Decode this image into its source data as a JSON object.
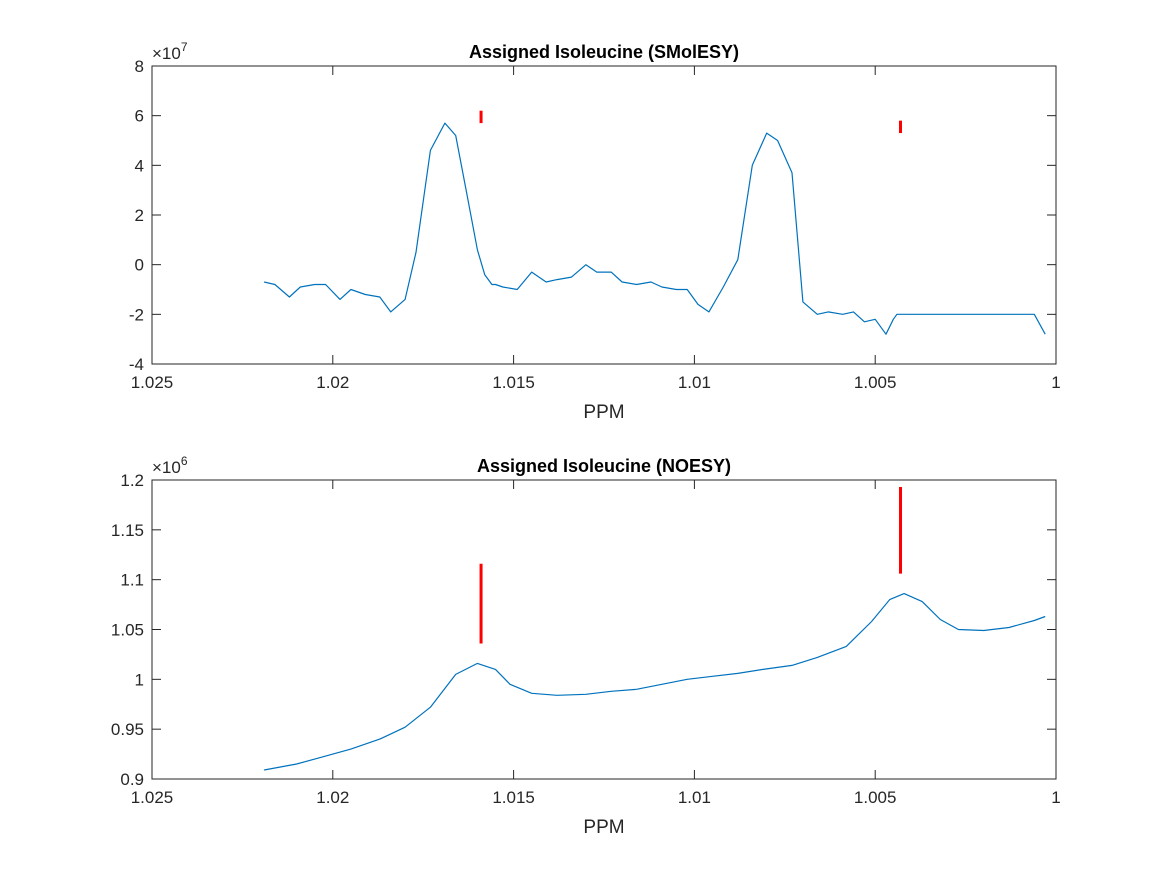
{
  "chart_data": [
    {
      "type": "line",
      "title": "Assigned Isoleucine (SMolESY)",
      "xlabel": "PPM",
      "ylabel": "",
      "x_reversed": true,
      "xlim": [
        1.0,
        1.025
      ],
      "ylim": [
        -4,
        8
      ],
      "xticks": [
        1.025,
        1.02,
        1.015,
        1.01,
        1.005,
        1
      ],
      "xtick_labels": [
        "1.025",
        "1.02",
        "1.015",
        "1.01",
        "1.005",
        "1"
      ],
      "yticks": [
        -4,
        -2,
        0,
        2,
        4,
        6,
        8
      ],
      "ytick_labels": [
        "-4",
        "-2",
        "0",
        "2",
        "4",
        "6",
        "8"
      ],
      "y_exponent_base": "×10",
      "y_exponent": "7",
      "line_color": "#0072BD",
      "marker_color": "#FF0000",
      "series": [
        {
          "x": [
            1.0219,
            1.0216,
            1.0212,
            1.0209,
            1.0205,
            1.0202,
            1.0198,
            1.0195,
            1.0191,
            1.0187,
            1.0184,
            1.018,
            1.0177,
            1.0173,
            1.0169,
            1.0166,
            1.0163,
            1.016,
            1.0158,
            1.0156,
            1.0155,
            1.0153,
            1.0149,
            1.0145,
            1.0141,
            1.0138,
            1.0134,
            1.013,
            1.0127,
            1.0123,
            1.012,
            1.0116,
            1.0112,
            1.0109,
            1.0105,
            1.0102,
            1.0099,
            1.0096,
            1.0092,
            1.0088,
            1.0084,
            1.008,
            1.0077,
            1.0073,
            1.007,
            1.0066,
            1.0063,
            1.0059,
            1.0056,
            1.0053,
            1.005,
            1.0047,
            1.0045,
            1.0044,
            1.0042,
            1.0038,
            1.0035,
            1.0032,
            1.0029,
            1.0025,
            1.0021,
            1.0017,
            1.0013,
            1.001,
            1.0006,
            1.0003
          ],
          "y": [
            -0.7,
            -0.8,
            -1.3,
            -0.9,
            -0.8,
            -0.8,
            -1.4,
            -1.0,
            -1.2,
            -1.3,
            -1.9,
            -1.4,
            0.5,
            4.6,
            5.7,
            5.2,
            2.9,
            0.6,
            -0.4,
            -0.8,
            -0.8,
            -0.9,
            -1.0,
            -0.3,
            -0.7,
            -0.6,
            -0.5,
            0.0,
            -0.3,
            -0.3,
            -0.7,
            -0.8,
            -0.7,
            -0.9,
            -1.0,
            -1.0,
            -1.6,
            -1.9,
            -0.9,
            0.2,
            4.0,
            5.3,
            5.0,
            3.7,
            -1.5,
            -2.0,
            -1.9,
            -2.0,
            -1.9,
            -2.3,
            -2.2,
            -2.8,
            -2.2,
            -2.0,
            -2.0,
            -2.0,
            -2.0,
            -2.0,
            -2.0,
            -2.0,
            -2.0,
            -2.0,
            -2.0,
            -2.0,
            -2.0,
            -2.8
          ]
        }
      ],
      "markers": [
        {
          "x": 1.0159,
          "y_low": 5.7,
          "y_high": 6.2
        },
        {
          "x": 1.0043,
          "y_low": 5.3,
          "y_high": 5.8
        }
      ]
    },
    {
      "type": "line",
      "title": "Assigned Isoleucine (NOESY)",
      "xlabel": "PPM",
      "ylabel": "",
      "x_reversed": true,
      "xlim": [
        1.0,
        1.025
      ],
      "ylim": [
        0.9,
        1.2
      ],
      "xticks": [
        1.025,
        1.02,
        1.015,
        1.01,
        1.005,
        1
      ],
      "xtick_labels": [
        "1.025",
        "1.02",
        "1.015",
        "1.01",
        "1.005",
        "1"
      ],
      "yticks": [
        0.9,
        0.95,
        1.0,
        1.05,
        1.1,
        1.15,
        1.2
      ],
      "ytick_labels": [
        "0.9",
        "0.95",
        "1",
        "1.05",
        "1.1",
        "1.15",
        "1.2"
      ],
      "y_exponent_base": "×10",
      "y_exponent": "6",
      "line_color": "#0072BD",
      "marker_color": "#FF0000",
      "series": [
        {
          "x": [
            1.0219,
            1.021,
            1.0203,
            1.0195,
            1.0187,
            1.018,
            1.0173,
            1.0166,
            1.016,
            1.0155,
            1.0151,
            1.0145,
            1.0138,
            1.013,
            1.0123,
            1.0116,
            1.0109,
            1.0102,
            1.0095,
            1.0088,
            1.0081,
            1.0073,
            1.0066,
            1.0058,
            1.0051,
            1.0046,
            1.0042,
            1.0037,
            1.0032,
            1.0027,
            1.002,
            1.0013,
            1.0006,
            1.0003
          ],
          "y": [
            0.909,
            0.915,
            0.922,
            0.93,
            0.94,
            0.952,
            0.972,
            1.005,
            1.016,
            1.01,
            0.995,
            0.986,
            0.984,
            0.985,
            0.988,
            0.99,
            0.995,
            1.0,
            1.003,
            1.006,
            1.01,
            1.014,
            1.022,
            1.033,
            1.058,
            1.08,
            1.086,
            1.078,
            1.06,
            1.05,
            1.049,
            1.052,
            1.059,
            1.063
          ]
        }
      ],
      "markers": [
        {
          "x": 1.0159,
          "y_low": 1.036,
          "y_high": 1.116
        },
        {
          "x": 1.0043,
          "y_low": 1.106,
          "y_high": 1.193
        }
      ]
    }
  ]
}
